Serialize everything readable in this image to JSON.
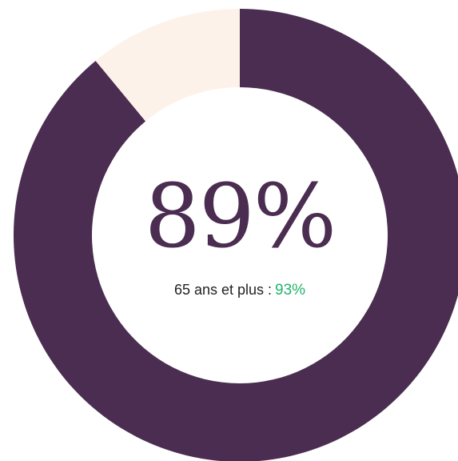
{
  "chart_data": {
    "type": "pie",
    "style": "donut",
    "values": [
      89,
      11
    ],
    "colors": [
      "#4a2d50",
      "#fdf2e9"
    ],
    "center_value": "89%",
    "subtitle_label": "65 ans et plus :",
    "subtitle_value": "93%",
    "subtitle_value_color": "#22b36a"
  }
}
